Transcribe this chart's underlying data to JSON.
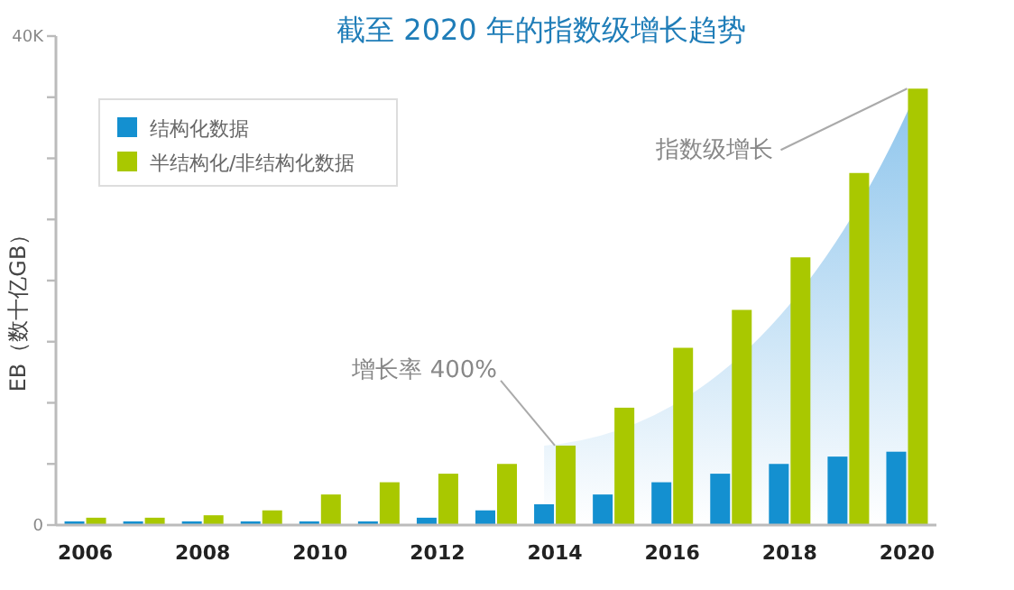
{
  "chart_data": {
    "type": "bar",
    "title": "截至 2020 年的指数级增长趋势",
    "ylabel": "EB（数十亿GB）",
    "categories": [
      "2006",
      null,
      "2008",
      null,
      "2010",
      null,
      "2012",
      null,
      "2014",
      null,
      "2016",
      null,
      "2018",
      null,
      "2020"
    ],
    "series": [
      {
        "name": "结构化数据",
        "color": "#1490d0",
        "values": [
          300,
          300,
          300,
          300,
          300,
          300,
          600,
          1200,
          1700,
          2500,
          3500,
          4200,
          5000,
          5600,
          6000
        ]
      },
      {
        "name": "半结构化/非结构化数据",
        "color": "#a9c800",
        "values": [
          600,
          600,
          800,
          1200,
          2500,
          3500,
          4200,
          5000,
          6500,
          9600,
          14500,
          17600,
          21900,
          28800,
          35700
        ]
      }
    ],
    "ylim": [
      0,
      40000
    ],
    "yticks": [
      0,
      {
        "value": 5000,
        "label": null
      },
      {
        "value": 10000,
        "label": null
      },
      {
        "value": 15000,
        "label": null
      },
      {
        "value": 20000,
        "label": null
      },
      {
        "value": 25000,
        "label": null
      },
      {
        "value": 30000,
        "label": null
      },
      {
        "value": 35000,
        "label": null
      },
      {
        "value": 40000,
        "label": "40K"
      }
    ],
    "legend": "top left",
    "grid": false,
    "annotations": [
      {
        "text": "增长率 400%",
        "x": "2014",
        "y": 6500
      },
      {
        "text": "指数级增长",
        "x": "2020",
        "y": 35700
      }
    ]
  }
}
